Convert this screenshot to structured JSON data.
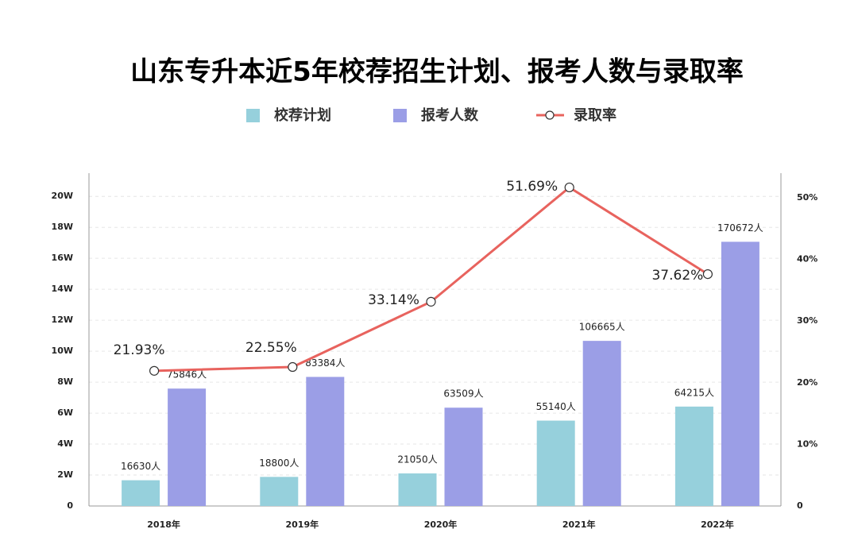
{
  "chart_data": {
    "type": "bar",
    "title": "山东专升本近5年校荐招生计划、报考人数与录取率",
    "categories": [
      "2018年",
      "2019年",
      "2020年",
      "2021年",
      "2022年"
    ],
    "series": [
      {
        "name": "校荐计划",
        "type": "bar",
        "color": "#96d0dc",
        "values": [
          16630,
          18800,
          21050,
          55140,
          64215
        ],
        "value_labels": [
          "16630人",
          "18800人",
          "21050人",
          "55140人",
          "64215人"
        ]
      },
      {
        "name": "报考人数",
        "type": "bar",
        "color": "#9b9ee6",
        "values": [
          75846,
          83384,
          63509,
          106665,
          170672
        ],
        "value_labels": [
          "75846人",
          "83384人",
          "63509人",
          "106665人",
          "170672人"
        ]
      },
      {
        "name": "录取率",
        "type": "line",
        "axis": "y2",
        "color": "#e8635e",
        "values": [
          21.93,
          22.55,
          33.14,
          51.69,
          37.62
        ],
        "value_labels": [
          "21.93%",
          "22.55%",
          "33.14%",
          "51.69%",
          "37.62%"
        ]
      }
    ],
    "ylim": [
      0,
      215000
    ],
    "yticks": [
      0,
      {
        "value": 20000,
        "label": "2W"
      },
      {
        "value": 40000,
        "label": "4W"
      },
      {
        "value": 60000,
        "label": "6W"
      },
      {
        "value": 80000,
        "label": "8W"
      },
      {
        "value": 100000,
        "label": "10W"
      },
      {
        "value": 120000,
        "label": "12W"
      },
      {
        "value": 140000,
        "label": "14W"
      },
      {
        "value": 160000,
        "label": "16W"
      },
      {
        "value": 180000,
        "label": "18W"
      },
      {
        "value": 200000,
        "label": "20W"
      }
    ],
    "y2lim": [
      0,
      54
    ],
    "y2ticks": [
      0,
      {
        "value": 10,
        "label": "10%"
      },
      {
        "value": 20,
        "label": "20%"
      },
      {
        "value": 30,
        "label": "30%"
      },
      {
        "value": 40,
        "label": "40%"
      },
      {
        "value": 50,
        "label": "50%"
      }
    ],
    "grid": true
  }
}
